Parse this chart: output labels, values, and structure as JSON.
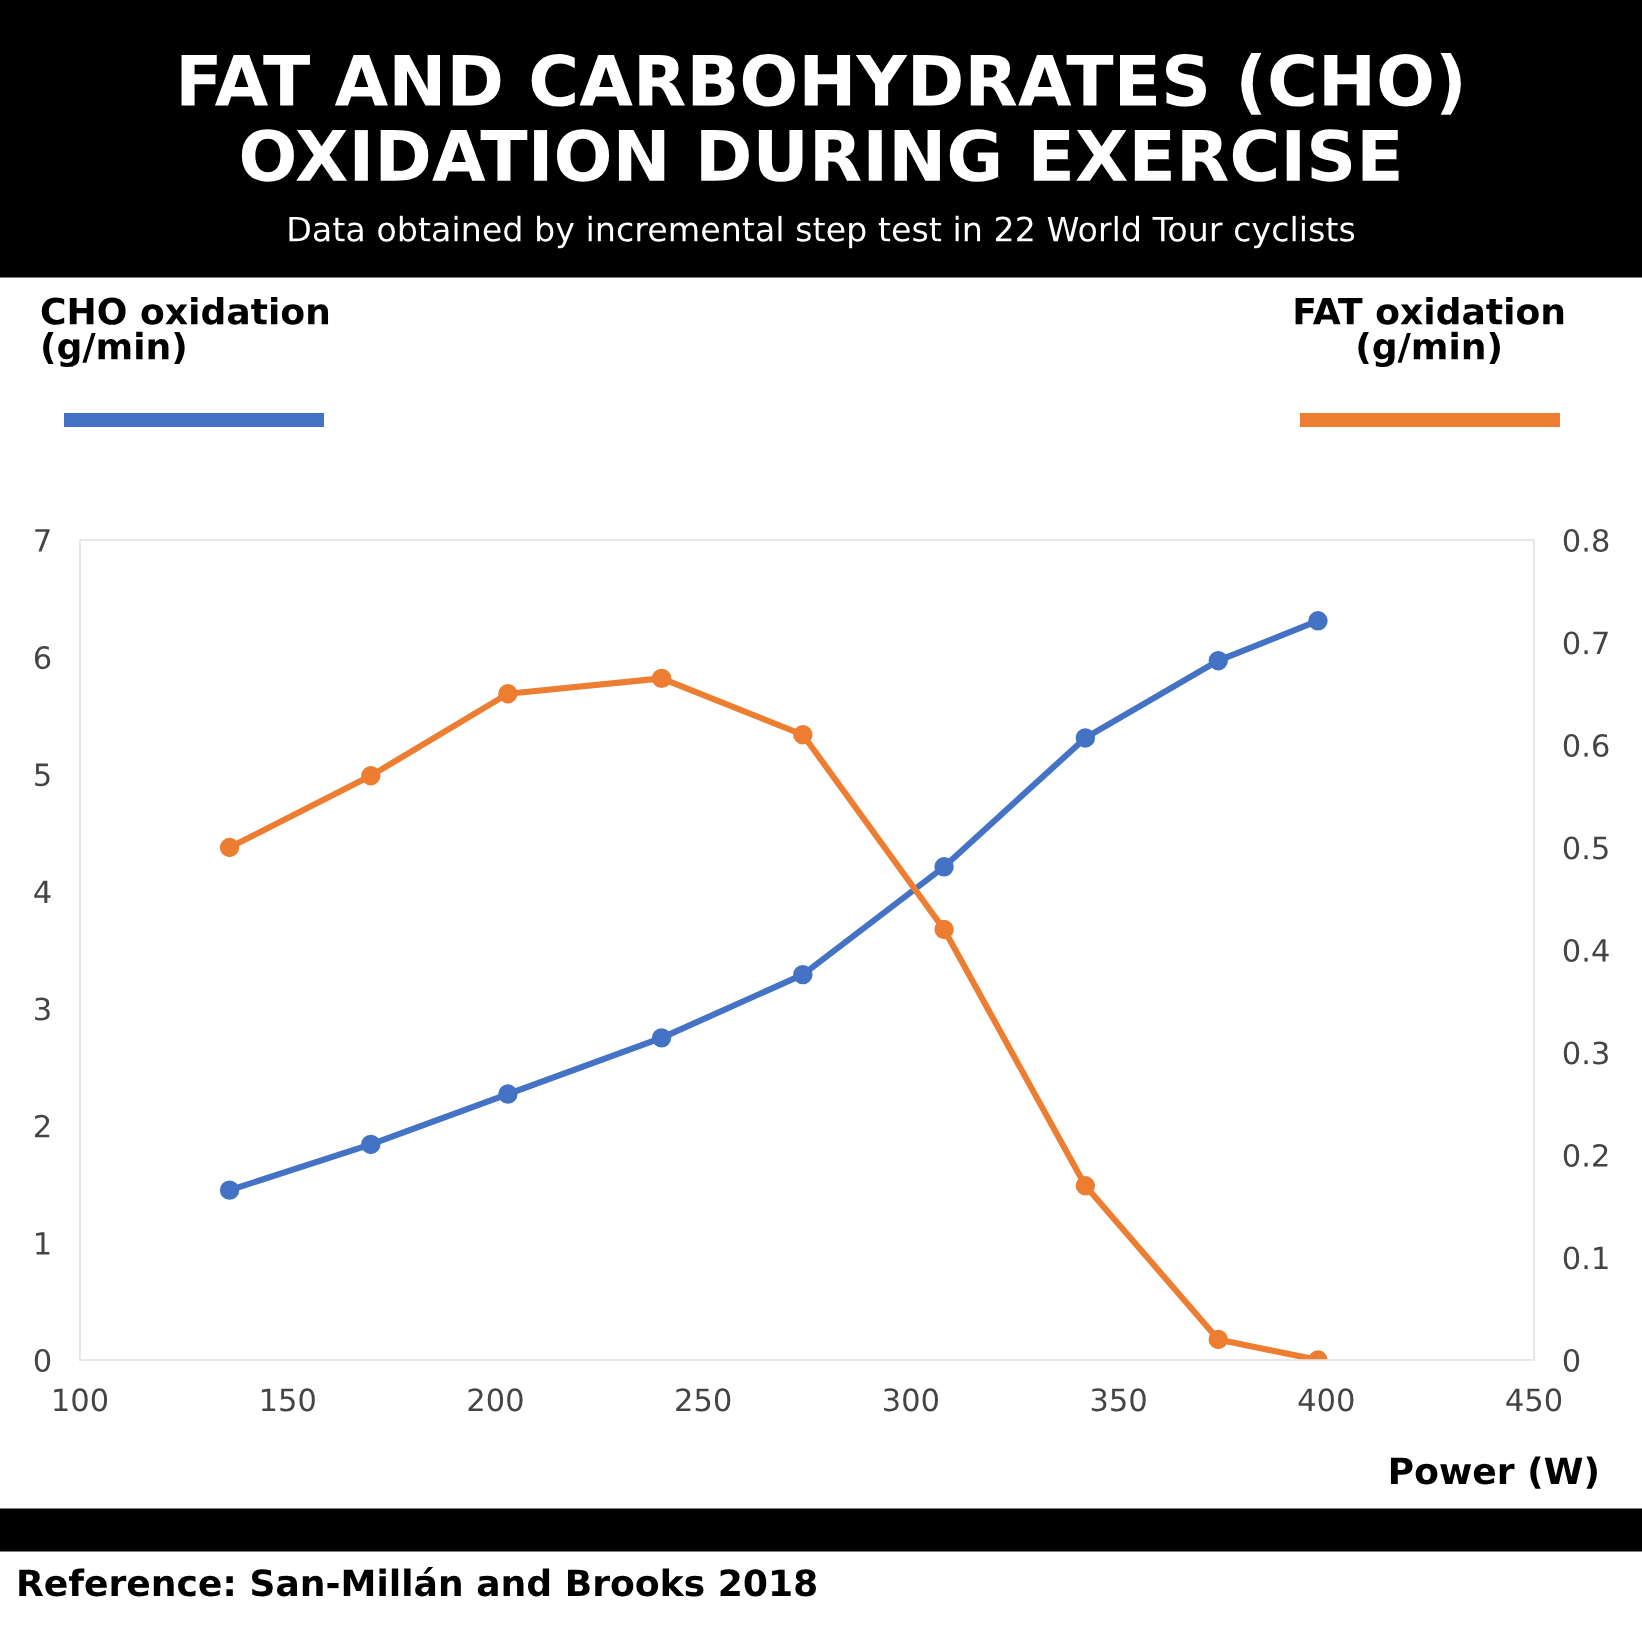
{
  "chart_data": {
    "type": "line",
    "title": "FAT AND CARBOHYDRATES (CHO)\nOXIDATION DURING EXERCISE",
    "subtitle": "Data obtained by incremental step test in 22 World Tour cyclists",
    "xlabel": "Power (W)",
    "ylabel": "CHO oxidation\n(g/min)",
    "y2label": "FAT oxidation\n(g/min)",
    "x": [
      136,
      170,
      203,
      240,
      274,
      308,
      342,
      374,
      398
    ],
    "series": [
      {
        "color": "#4472c4",
        "values": [
          1.45,
          1.84,
          2.27,
          2.75,
          3.29,
          4.21,
          5.31,
          5.97,
          6.31
        ]
      },
      {
        "color": "#ed7d31",
        "axis": "y2",
        "values": [
          0.5,
          0.57,
          0.65,
          0.665,
          0.61,
          0.42,
          0.17,
          0.02,
          0
        ]
      }
    ],
    "xlim": [
      100,
      450
    ],
    "xticks": [
      100,
      150,
      200,
      250,
      300,
      350,
      400,
      450
    ],
    "ylim": [
      0,
      7
    ],
    "yticks": [
      0,
      1,
      2,
      3,
      4,
      5,
      6,
      7
    ],
    "y2lim": [
      0,
      0.8
    ],
    "y2ticks": [
      0,
      0.1,
      0.2,
      0.3,
      0.4,
      0.5,
      0.6,
      0.7,
      0.8
    ],
    "grid": false,
    "marker": "circle",
    "line_style": "solid",
    "annotations": [
      "Reference: San-Millán and Brooks 2018"
    ]
  }
}
